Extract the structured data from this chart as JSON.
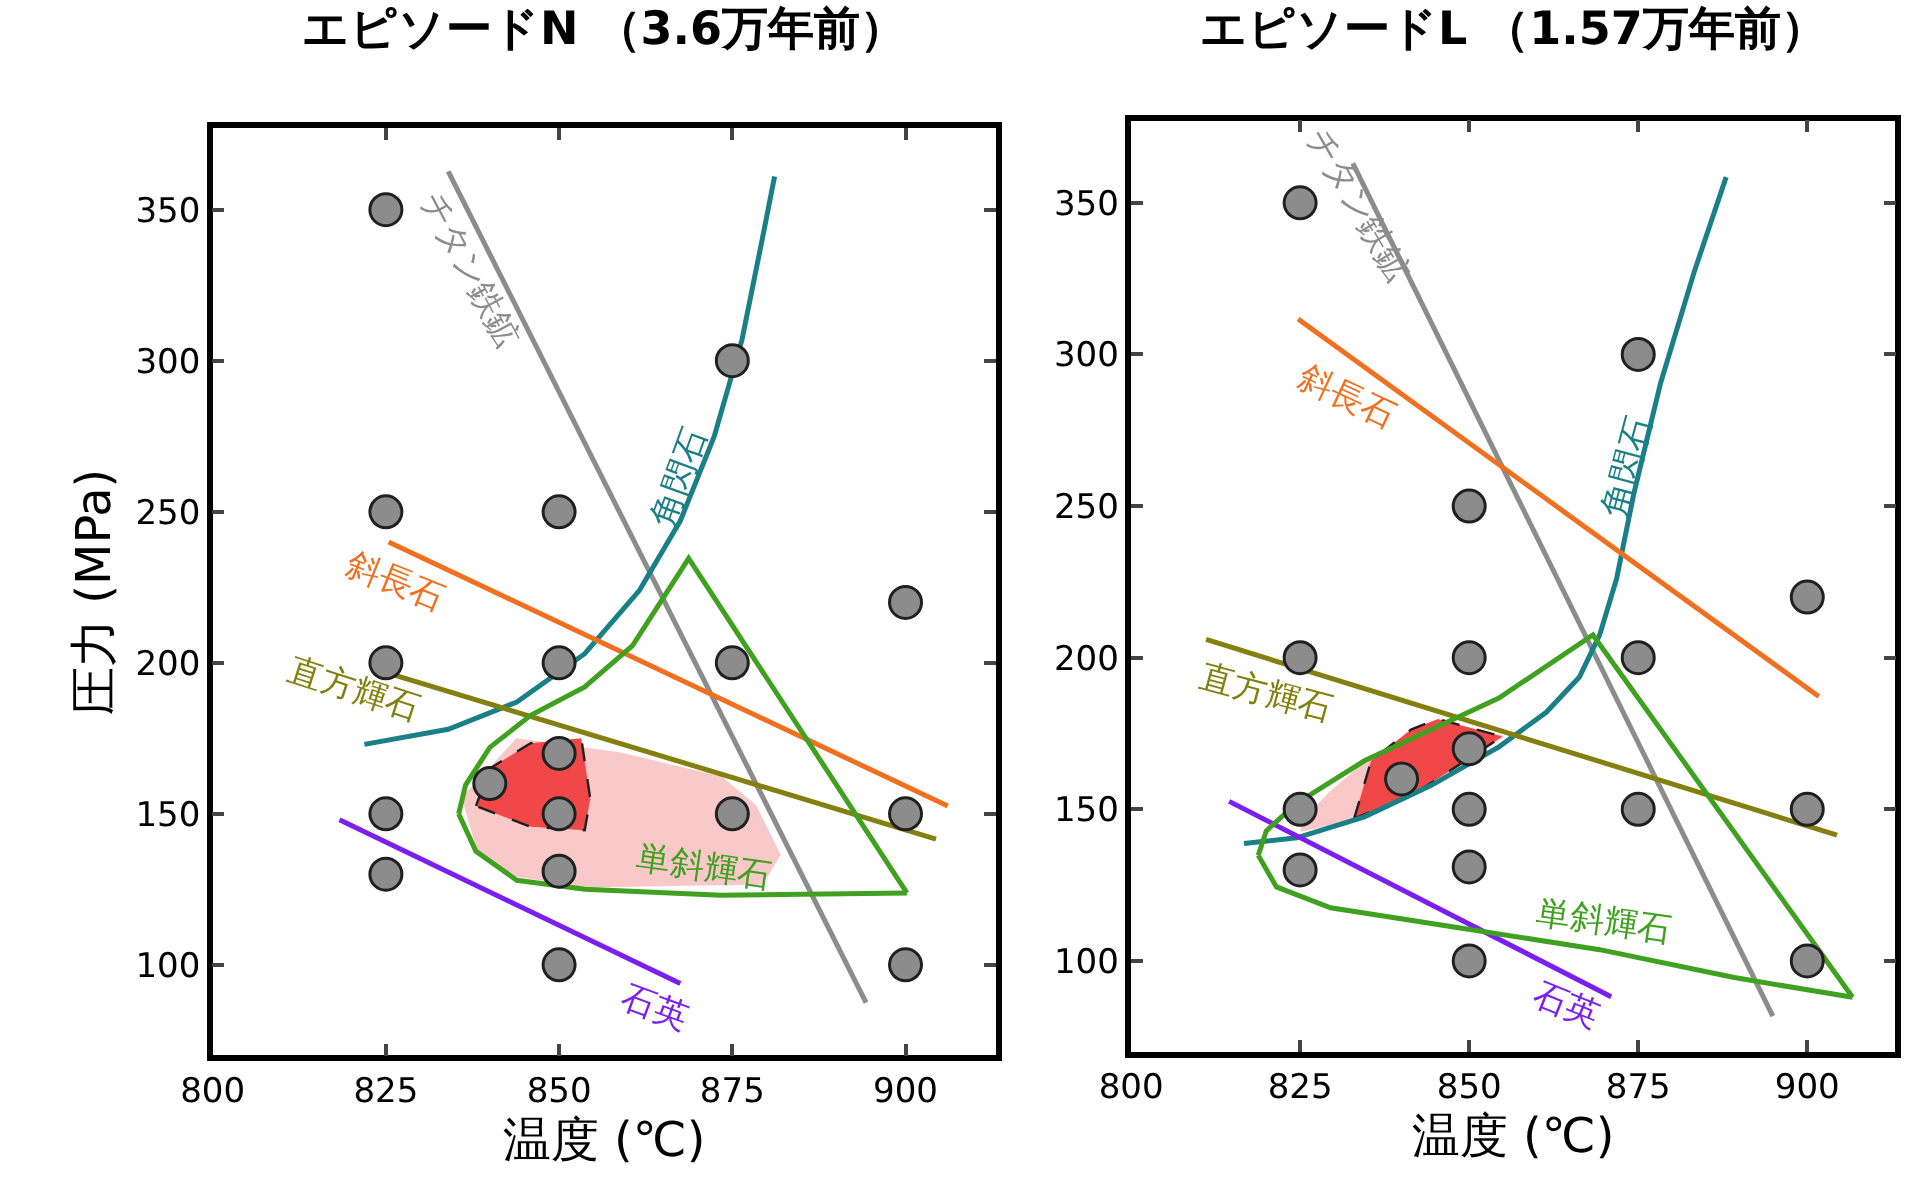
{
  "chart_data": [
    {
      "type": "line",
      "title": "エピソードN （3.6万年前）",
      "xlabel": "温度 (℃)",
      "ylabel": "圧力 (MPa)",
      "xlim": [
        800,
        913
      ],
      "ylim": [
        70,
        377
      ],
      "xticks": [
        800,
        825,
        850,
        875,
        900
      ],
      "yticks": [
        100,
        150,
        200,
        250,
        300,
        350
      ],
      "legend": false,
      "series": [
        {
          "type": "area",
          "color": "#f9c8c8",
          "x": [
            836,
            843.9,
            858.7,
            873.4,
            878.3,
            881.8,
            879.3,
            853.7,
            843.9,
            838
          ],
          "values": [
            155,
            174.6,
            170,
            162,
            152.6,
            136.5,
            127,
            126,
            129.5,
            138.8
          ]
        },
        {
          "type": "area",
          "color": "#f04848",
          "line_style": "dashed",
          "x": [
            838,
            840,
            845.9,
            853.2,
            854.5,
            853.7,
            845.9,
            838
          ],
          "values": [
            152.6,
            165,
            173.4,
            175,
            155,
            144.6,
            145.7,
            152.6
          ]
        },
        {
          "name": "チタン鉄鉱",
          "color": "#8c8c8c",
          "x": [
            834,
            894.3
          ],
          "values": [
            362.7,
            87.5
          ]
        },
        {
          "name": "角閃石",
          "color": "#1a7f86",
          "x": [
            821.9,
            834,
            843.9,
            853.7,
            861.6,
            867.5,
            872.4,
            876.4,
            879.3,
            881.1
          ],
          "values": [
            173,
            178,
            187,
            203,
            224,
            247,
            275,
            307,
            340,
            361
          ]
        },
        {
          "name": "斜長石",
          "color": "#f07020",
          "x": [
            825.4,
            906.1
          ],
          "values": [
            240,
            152.6
          ]
        },
        {
          "name": "直方輝石",
          "color": "#848010",
          "x": [
            825.4,
            904.4
          ],
          "values": [
            196.5,
            141.6
          ]
        },
        {
          "name": "石英",
          "color": "#7a1ff0",
          "x": [
            818.3,
            867.5
          ],
          "values": [
            148,
            93.8
          ]
        },
        {
          "name": "単斜輝石",
          "color": "#40a020",
          "x": [
            835.5,
            836.5,
            840,
            845.9,
            853.7,
            860.6,
            868.7,
            900.2
          ],
          "values": [
            150,
            159.5,
            172,
            182.6,
            192,
            205.7,
            234.6,
            123.8
          ]
        },
        {
          "color": "#40a020",
          "x": [
            835.5,
            838,
            843.9,
            853.7,
            873.4,
            900.2
          ],
          "values": [
            150,
            137.6,
            128,
            125,
            123,
            123.8
          ]
        },
        {
          "type": "scatter",
          "color": "#8c8c8c",
          "marker": "circle",
          "x": [
            825,
            825,
            825,
            825,
            825,
            840,
            850,
            850,
            850,
            850,
            850,
            850,
            875,
            875,
            875,
            900,
            900,
            900
          ],
          "values": [
            350,
            250,
            200,
            150,
            130,
            160,
            250,
            200,
            170,
            150,
            131,
            100,
            300,
            200,
            150,
            220,
            150,
            100
          ]
        }
      ]
    },
    {
      "type": "line",
      "title": "エピソードL （1.57万年前）",
      "xlabel": "温度 (℃)",
      "xlim": [
        800,
        913
      ],
      "ylim": [
        70,
        377
      ],
      "xticks": [
        800,
        825,
        850,
        875,
        900
      ],
      "yticks": [
        100,
        150,
        200,
        250,
        300,
        350
      ],
      "legend": false,
      "series": [
        {
          "type": "area",
          "color": "#f9c8c8",
          "x": [
            825.1,
            829.5,
            835.5,
            844.4,
            854.9,
            844.4,
            834.5,
            825.1
          ],
          "values": [
            145.2,
            155.6,
            167,
            177.5,
            174,
            158,
            147.5,
            143
          ]
        },
        {
          "type": "area",
          "color": "#f04848",
          "line_style": "dashed",
          "x": [
            833,
            835.5,
            841.4,
            845.4,
            854.9,
            849.4,
            841.4,
            833
          ],
          "values": [
            147,
            166,
            176.3,
            179.8,
            174,
            166,
            154.4,
            147
          ]
        },
        {
          "name": "チタン鉄鉱",
          "color": "#8c8c8c",
          "x": [
            832.8,
            894.9
          ],
          "values": [
            363,
            81.8
          ]
        },
        {
          "name": "角閃石",
          "color": "#1a7f86",
          "x": [
            816.7,
            824.5,
            834.5,
            844.4,
            854.4,
            861.4,
            866.3,
            869.3,
            871.8,
            874.3,
            878.3,
            883.3,
            888
          ],
          "values": [
            138.7,
            140.6,
            147.5,
            157.9,
            170.6,
            182,
            193.6,
            207.5,
            226,
            253.6,
            290.5,
            327.4,
            358.5
          ]
        },
        {
          "name": "斜長石",
          "color": "#f07020",
          "x": [
            824.7,
            901.7
          ],
          "values": [
            311.7,
            187.2
          ]
        },
        {
          "name": "直方輝石",
          "color": "#848010",
          "x": [
            811.1,
            904.4
          ],
          "values": [
            206,
            141.5
          ]
        },
        {
          "name": "石英",
          "color": "#7a1ff0",
          "x": [
            814.5,
            871
          ],
          "values": [
            152.6,
            88.2
          ]
        },
        {
          "name": "単斜輝石",
          "color": "#40a020",
          "x": [
            818.8,
            820,
            824.5,
            834.5,
            844.4,
            854.4,
            868.3,
            906.7
          ],
          "values": [
            134.8,
            142.9,
            152,
            166,
            176.3,
            186.7,
            207.5,
            88
          ]
        },
        {
          "color": "#40a020",
          "x": [
            818.8,
            821.5,
            829.5,
            849.4,
            869.3,
            889.2,
            906.7
          ],
          "values": [
            134.8,
            124.4,
            117.5,
            110.6,
            103.7,
            94.5,
            88
          ]
        },
        {
          "type": "scatter",
          "color": "#8c8c8c",
          "marker": "circle",
          "x": [
            825,
            825,
            825,
            825,
            840,
            850,
            850,
            850,
            850,
            850,
            850,
            875,
            875,
            875,
            900,
            900,
            900
          ],
          "values": [
            350,
            200,
            150,
            130,
            160,
            250,
            200,
            170,
            150,
            131,
            100,
            300,
            200,
            150,
            220,
            150,
            100
          ]
        }
      ]
    }
  ]
}
